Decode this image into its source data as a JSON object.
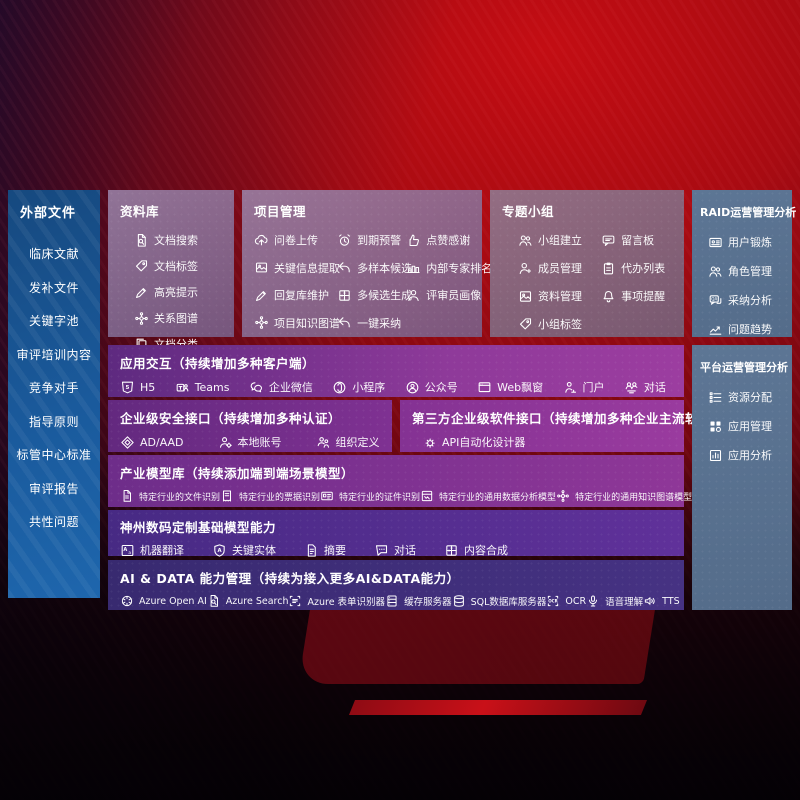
{
  "colors": {
    "background_red": "#b50d13",
    "sidebar_blue": "#1b5fa6",
    "panel_lavender": "#9b86ac",
    "row_purple": "#8f3a9a",
    "row_indigo": "#3f2d78",
    "panel_slate": "#5b7390"
  },
  "left_sidebar": {
    "title": "外部文件",
    "items": [
      "临床文献",
      "发补文件",
      "关键字池",
      "审评培训内容",
      "竞争对手",
      "指导原则",
      "标管中心标准",
      "审评报告",
      "共性问题"
    ]
  },
  "top_boxes": [
    {
      "title": "资料库",
      "items": [
        {
          "icon": "doc-search-icon",
          "label": "文档搜索"
        },
        {
          "icon": "tag-icon",
          "label": "文档标签"
        },
        {
          "icon": "highlight-pencil-icon",
          "label": "高亮提示"
        },
        {
          "icon": "knowledge-graph-icon",
          "label": "关系图谱"
        },
        {
          "icon": "doc-copy-icon",
          "label": "文档分类"
        }
      ]
    },
    {
      "title": "项目管理",
      "items": [
        {
          "icon": "cloud-upload-icon",
          "label": "问卷上传"
        },
        {
          "icon": "alarm-icon",
          "label": "到期预警"
        },
        {
          "icon": "thumbs-up-icon",
          "label": "点赞感谢"
        },
        {
          "icon": "info-extract-icon",
          "label": "关键信息提取"
        },
        {
          "icon": "reply-arrow-icon",
          "label": "多样本候选"
        },
        {
          "icon": "expert-rank-icon",
          "label": "内部专家排名"
        },
        {
          "icon": "pencil-icon",
          "label": "回复库维护"
        },
        {
          "icon": "puzzle-icon",
          "label": "多候选生成"
        },
        {
          "icon": "person-icon",
          "label": "评审员画像"
        },
        {
          "icon": "knowledge-graph-icon",
          "label": "项目知识图谱"
        },
        {
          "icon": "reply-arrow-icon",
          "label": "一键采纳"
        }
      ]
    },
    {
      "title": "专题小组",
      "items": [
        {
          "icon": "people-icon",
          "label": "小组建立"
        },
        {
          "icon": "bbs-chat-icon",
          "label": "留言板"
        },
        {
          "icon": "person-add-icon",
          "label": "成员管理"
        },
        {
          "icon": "clipboard-icon",
          "label": "代办列表"
        },
        {
          "icon": "photo-icon",
          "label": "资料管理"
        },
        {
          "icon": "bell-icon",
          "label": "事项提醒"
        },
        {
          "icon": "tag-icon",
          "label": "小组标签"
        }
      ]
    }
  ],
  "right_panels": [
    {
      "title": "RAID运营管理分析",
      "items": [
        {
          "icon": "id-card-icon",
          "label": "用户锻炼"
        },
        {
          "icon": "role-people-icon",
          "label": "角色管理"
        },
        {
          "icon": "qa-chat-icon",
          "label": "采纳分析"
        },
        {
          "icon": "trend-chart-icon",
          "label": "问题趋势"
        }
      ]
    },
    {
      "title": "平台运营管理分析",
      "items": [
        {
          "icon": "resource-list-icon",
          "label": "资源分配"
        },
        {
          "icon": "app-grid-icon",
          "label": "应用管理"
        },
        {
          "icon": "app-chart-icon",
          "label": "应用分析"
        }
      ]
    }
  ],
  "rows": [
    {
      "title": "应用交互（持续增加多种客户端）",
      "items": [
        {
          "icon": "h5-icon",
          "label": "H5"
        },
        {
          "icon": "teams-icon",
          "label": "Teams"
        },
        {
          "icon": "wechat-work-icon",
          "label": "企业微信"
        },
        {
          "icon": "miniprogram-icon",
          "label": "小程序"
        },
        {
          "icon": "official-account-icon",
          "label": "公众号"
        },
        {
          "icon": "web-window-icon",
          "label": "Web飘窗"
        },
        {
          "icon": "portal-icon",
          "label": "门户"
        },
        {
          "icon": "dialog-icon",
          "label": "对话"
        }
      ]
    },
    {
      "boxes": [
        {
          "title": "企业级安全接口（持续增加多种认证）",
          "items": [
            {
              "icon": "ad-diamond-icon",
              "label": "AD/AAD"
            },
            {
              "icon": "local-account-icon",
              "label": "本地账号"
            },
            {
              "icon": "org-define-icon",
              "label": "组织定义"
            }
          ]
        },
        {
          "title": "第三方企业级软件接口（持续增加多种企业主流软件接口）",
          "items": [
            {
              "icon": "api-gear-icon",
              "label": "API自动化设计器"
            }
          ]
        }
      ]
    },
    {
      "title": "产业模型库（持续添加端到端场景模型）",
      "items": [
        {
          "icon": "doc-file-icon",
          "label": "特定行业的文件识别"
        },
        {
          "icon": "receipt-icon",
          "label": "特定行业的票据识别"
        },
        {
          "icon": "cert-icon",
          "label": "特定行业的证件识别"
        },
        {
          "icon": "data-model-icon",
          "label": "特定行业的通用数据分析模型"
        },
        {
          "icon": "graph-model-icon",
          "label": "特定行业的通用知识图谱模型"
        }
      ]
    },
    {
      "title": "神州数码定制基础模型能力",
      "items": [
        {
          "icon": "translate-icon",
          "label": "机器翻译"
        },
        {
          "icon": "entity-shield-icon",
          "label": "关键实体"
        },
        {
          "icon": "summary-icon",
          "label": "摘要"
        },
        {
          "icon": "chat-icon",
          "label": "对话"
        },
        {
          "icon": "compose-puzzle-icon",
          "label": "内容合成"
        }
      ]
    },
    {
      "title": "AI & DATA 能力管理（持续为接入更多AI&DATA能力）",
      "items": [
        {
          "icon": "openai-icon",
          "label": "Azure Open AI"
        },
        {
          "icon": "azure-search-icon",
          "label": "Azure Search"
        },
        {
          "icon": "form-recognizer-icon",
          "label": "Azure 表单识别器"
        },
        {
          "icon": "cache-server-icon",
          "label": "缓存服务器"
        },
        {
          "icon": "sql-db-icon",
          "label": "SQL数据库服务器"
        },
        {
          "icon": "ocr-icon",
          "label": "OCR"
        },
        {
          "icon": "voice-icon",
          "label": "语音理解"
        },
        {
          "icon": "tts-icon",
          "label": "TTS"
        }
      ]
    }
  ]
}
